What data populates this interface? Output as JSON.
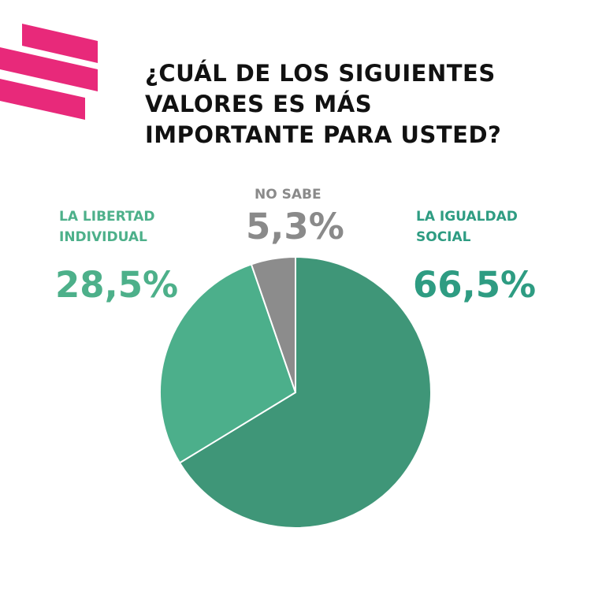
{
  "title_lines": [
    "¿CUÁL DE LOS SIGUIENTES",
    "VALORES ES MÁS",
    "IMPORTANTE PARA USTED?"
  ],
  "labels": {
    "libertad": {
      "name_line1": "LA LIBERTAD",
      "name_line2": "INDIVIDUAL",
      "value": "28,5%"
    },
    "no_sabe": {
      "name_line1": "NO SABE",
      "value": "5,3%"
    },
    "igualdad": {
      "name_line1": "LA IGUALDAD",
      "name_line2": "SOCIAL",
      "value": "66,5%"
    }
  },
  "colors": {
    "brand": "#e8297a",
    "igualdad": "#3f9678",
    "libertad": "#4caf8b",
    "no_sabe": "#8c8c8c",
    "title": "#111111"
  },
  "chart_data": {
    "type": "pie",
    "title": "¿CUÁL DE LOS SIGUIENTES VALORES ES MÁS IMPORTANTE PARA USTED?",
    "categories": [
      "LA IGUALDAD SOCIAL",
      "LA LIBERTAD INDIVIDUAL",
      "NO SABE"
    ],
    "values": [
      66.5,
      28.5,
      5.3
    ],
    "unit": "%",
    "start": "12 o'clock",
    "direction": "clockwise",
    "legend": "none"
  }
}
